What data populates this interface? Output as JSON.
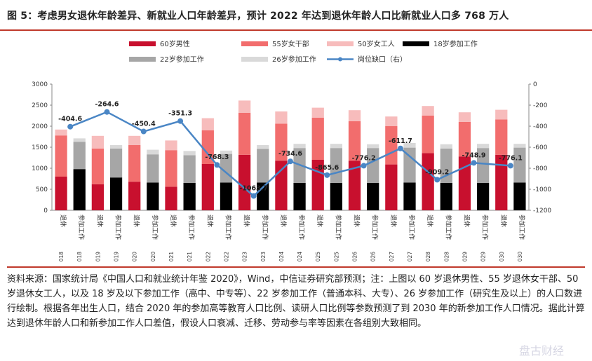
{
  "title": "图 5：考虑男女退休年龄差异、新就业人口年龄差异，预计 2022 年达到退休年龄人口比新就业人口多 768 万人",
  "source_text": "资料来源：国家统计局《中国人口和就业统计年鉴 2020》，Wind，中信证券研究部预测；注：上图以 60 岁退休男性、55 岁退休女干部、50 岁退休女工人，以及 18 岁及以下参加工作（高中、中专等）、22 岁参加工作（普通本科、大专）、26 岁参加工作（研究生及以上）的人口数进行绘制。根据各年出生人口，结合 2020 年的参加高等教育人口比例、读研人口比例等参数预测了到 2030 年的新参加工作人口情况。据此计算达到退休年龄人口和新参加工作人口差值，假设人口衰减、迁移、劳动参与率等因素在各组别大致相同。",
  "watermark": "盘古财经",
  "colors": {
    "retire_male": "#c8102e",
    "retire_female_cadre": "#f26d6d",
    "retire_female_worker": "#f7bcbc",
    "work18": "#000000",
    "work22": "#a6a6a6",
    "work26": "#d9d9d9",
    "gap": "#4a86c5"
  },
  "chart_data": {
    "type": "bar",
    "legend": [
      {
        "key": "retire_male",
        "label": "60岁男性",
        "kind": "bar"
      },
      {
        "key": "retire_female_cadre",
        "label": "55岁女干部",
        "kind": "bar"
      },
      {
        "key": "retire_female_worker",
        "label": "50岁女工人",
        "kind": "bar"
      },
      {
        "key": "work18",
        "label": "18岁参加工作",
        "kind": "bar"
      },
      {
        "key": "work22",
        "label": "22岁参加工作",
        "kind": "bar"
      },
      {
        "key": "work26",
        "label": "26岁参加工作",
        "kind": "bar"
      },
      {
        "key": "gap",
        "label": "岗位缺口（右）",
        "kind": "line"
      }
    ],
    "years": [
      "2018",
      "2019",
      "2020",
      "2021",
      "2022",
      "2023",
      "2024",
      "2025",
      "2026",
      "2027",
      "2028",
      "2029",
      "2030"
    ],
    "category_labels": {
      "retire": "退休",
      "work": "参加工作"
    },
    "left_axis": {
      "min": 0,
      "max": 3000,
      "ticks": [
        "0",
        "500",
        "1000",
        "1500",
        "2000",
        "2500",
        "3000"
      ]
    },
    "right_axis": {
      "min": -1200,
      "max": 0,
      "ticks": [
        "0",
        "-200",
        "-400",
        "-600",
        "-800",
        "-1000",
        "-1200"
      ]
    },
    "retire": {
      "retire_male": [
        800,
        620,
        680,
        560,
        1100,
        1320,
        1180,
        1200,
        1180,
        1090,
        1360,
        1280,
        1320
      ],
      "retire_female_cadre": [
        980,
        850,
        870,
        870,
        800,
        1000,
        880,
        1000,
        940,
        910,
        890,
        820,
        840
      ],
      "retire_female_worker": [
        140,
        300,
        220,
        230,
        290,
        290,
        290,
        240,
        260,
        230,
        230,
        230,
        230
      ]
    },
    "work": {
      "work18": [
        980,
        780,
        660,
        650,
        660,
        660,
        650,
        650,
        650,
        660,
        650,
        650,
        660
      ],
      "work22": [
        650,
        690,
        670,
        660,
        680,
        800,
        830,
        830,
        830,
        830,
        820,
        830,
        830
      ],
      "work26": [
        80,
        80,
        110,
        100,
        80,
        90,
        100,
        100,
        90,
        110,
        100,
        100,
        90
      ]
    },
    "gap": {
      "name": "岗位缺口（右）",
      "values": [
        -404.6,
        -264.6,
        -450.4,
        -351.3,
        -768.3,
        -1063.7,
        -734.6,
        -865.6,
        -776.2,
        -611.7,
        -909.2,
        -748.9,
        -776.1
      ],
      "labels": [
        "-404.6",
        "-264.6",
        "-450.4",
        "-351.3",
        "-768.3",
        "-1063.7",
        "-734.6",
        "-865.6",
        "-776.2",
        "-611.7",
        "-909.2",
        "-748.9",
        "-776.1"
      ]
    }
  }
}
